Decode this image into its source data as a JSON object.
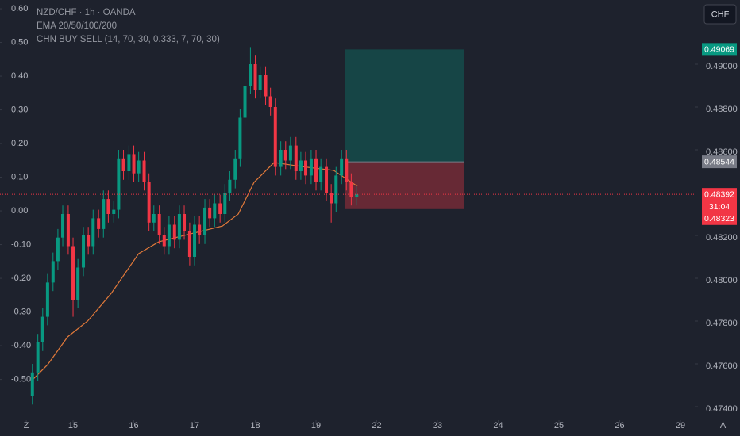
{
  "chart_data": {
    "type": "candlestick",
    "title": "NZD/CHF · 1h · OANDA",
    "subtitles": [
      "EMA 20/50/100/200",
      "CHN BUY SELL (14, 70, 30, 0.333, 7, 70, 30)"
    ],
    "currency_button": "CHF",
    "xlim": [
      -1.203,
      10.235
    ],
    "ylim": [
      0.47337,
      0.493
    ],
    "y2lim": [
      -0.621,
      0.626
    ],
    "xticks": [
      {
        "value": -0.77,
        "label": "Z"
      },
      {
        "value": 0,
        "label": "15"
      },
      {
        "value": 1,
        "label": "16"
      },
      {
        "value": 2,
        "label": "17"
      },
      {
        "value": 3,
        "label": "18"
      },
      {
        "value": 4,
        "label": "19"
      },
      {
        "value": 5,
        "label": "22"
      },
      {
        "value": 6,
        "label": "23"
      },
      {
        "value": 7,
        "label": "24"
      },
      {
        "value": 8,
        "label": "25"
      },
      {
        "value": 9,
        "label": "26"
      },
      {
        "value": 10,
        "label": "29"
      },
      {
        "value": 10.7,
        "label": "A"
      }
    ],
    "yticks": [
      {
        "value": 0.49,
        "label": "0.49000"
      },
      {
        "value": 0.488,
        "label": "0.48800"
      },
      {
        "value": 0.486,
        "label": "0.48600"
      },
      {
        "value": 0.482,
        "label": "0.48200"
      },
      {
        "value": 0.48,
        "label": "0.48000"
      },
      {
        "value": 0.478,
        "label": "0.47800"
      },
      {
        "value": 0.476,
        "label": "0.47600"
      },
      {
        "value": 0.474,
        "label": "0.47400"
      }
    ],
    "y2ticks": [
      {
        "value": 0.6,
        "label": "0.60"
      },
      {
        "value": 0.5,
        "label": "0.50"
      },
      {
        "value": 0.4,
        "label": "0.40"
      },
      {
        "value": 0.3,
        "label": "0.30"
      },
      {
        "value": 0.2,
        "label": "0.20"
      },
      {
        "value": 0.1,
        "label": "0.10"
      },
      {
        "value": 0,
        "label": "0.00"
      },
      {
        "value": -0.1,
        "label": "-0.10"
      },
      {
        "value": -0.2,
        "label": "-0.20"
      },
      {
        "value": -0.3,
        "label": "-0.30"
      },
      {
        "value": -0.4,
        "label": "-0.40"
      },
      {
        "value": -0.5,
        "label": "-0.50"
      }
    ],
    "up_color": "#089981",
    "down_color": "#f23645",
    "x": [
      -0.67,
      -0.58,
      -0.5,
      -0.42,
      -0.33,
      -0.25,
      -0.17,
      -0.08,
      0,
      0.08,
      0.17,
      0.25,
      0.33,
      0.42,
      0.5,
      0.58,
      0.67,
      0.75,
      0.83,
      0.92,
      1,
      1.08,
      1.17,
      1.25,
      1.33,
      1.42,
      1.5,
      1.58,
      1.67,
      1.75,
      1.83,
      1.92,
      2,
      2.08,
      2.17,
      2.25,
      2.33,
      2.42,
      2.5,
      2.58,
      2.67,
      2.75,
      2.83,
      2.92,
      3,
      3.08,
      3.17,
      3.25,
      3.33,
      3.42,
      3.5,
      3.58,
      3.67,
      3.75,
      3.83,
      3.92,
      4,
      4.08,
      4.17,
      4.25,
      4.33,
      4.42,
      4.5,
      4.58,
      4.67
    ],
    "open": [
      0.4745,
      0.4756,
      0.477,
      0.4782,
      0.4798,
      0.4808,
      0.4819,
      0.483,
      0.4815,
      0.479,
      0.4805,
      0.482,
      0.4815,
      0.4828,
      0.4823,
      0.4837,
      0.483,
      0.4832,
      0.4856,
      0.485,
      0.4858,
      0.4849,
      0.4855,
      0.4845,
      0.4826,
      0.483,
      0.482,
      0.4815,
      0.4825,
      0.4818,
      0.483,
      0.4822,
      0.481,
      0.4825,
      0.482,
      0.4833,
      0.4828,
      0.4835,
      0.483,
      0.484,
      0.4846,
      0.4856,
      0.4875,
      0.489,
      0.49,
      0.4888,
      0.4895,
      0.4885,
      0.488,
      0.4852,
      0.486,
      0.4855,
      0.4862,
      0.485,
      0.4855,
      0.4848,
      0.4856,
      0.4845,
      0.4852,
      0.484,
      0.4835,
      0.4848,
      0.4856,
      0.4845,
      0.4838
    ],
    "high": [
      0.476,
      0.4774,
      0.4786,
      0.4802,
      0.4812,
      0.4823,
      0.4834,
      0.4834,
      0.4819,
      0.4809,
      0.4824,
      0.4824,
      0.4832,
      0.4832,
      0.4841,
      0.4841,
      0.4836,
      0.486,
      0.486,
      0.4862,
      0.4862,
      0.4859,
      0.4859,
      0.4849,
      0.4834,
      0.4834,
      0.4824,
      0.4829,
      0.4829,
      0.4834,
      0.4834,
      0.4826,
      0.4829,
      0.4829,
      0.4837,
      0.4837,
      0.4839,
      0.4839,
      0.4844,
      0.485,
      0.486,
      0.4879,
      0.4894,
      0.4908,
      0.4904,
      0.4899,
      0.4899,
      0.4889,
      0.4884,
      0.4864,
      0.4864,
      0.4866,
      0.4866,
      0.4859,
      0.4859,
      0.486,
      0.486,
      0.4856,
      0.4856,
      0.4844,
      0.4852,
      0.486,
      0.486,
      0.4849,
      0.4843
    ],
    "low": [
      0.4741,
      0.4752,
      0.4766,
      0.4778,
      0.4794,
      0.4804,
      0.4815,
      0.4811,
      0.4782,
      0.4786,
      0.4801,
      0.4811,
      0.4811,
      0.4819,
      0.4819,
      0.4826,
      0.4826,
      0.4828,
      0.4846,
      0.4846,
      0.4845,
      0.4845,
      0.4841,
      0.4822,
      0.4822,
      0.4816,
      0.4811,
      0.4811,
      0.4814,
      0.4814,
      0.4818,
      0.4806,
      0.4806,
      0.4816,
      0.4816,
      0.4824,
      0.4824,
      0.4826,
      0.4826,
      0.4836,
      0.4842,
      0.4852,
      0.4871,
      0.4886,
      0.4884,
      0.4884,
      0.4881,
      0.4876,
      0.4848,
      0.4848,
      0.4851,
      0.4851,
      0.4846,
      0.4846,
      0.4844,
      0.4844,
      0.4841,
      0.4841,
      0.4836,
      0.4826,
      0.4831,
      0.4844,
      0.4841,
      0.4834,
      0.4834
    ],
    "close": [
      0.4756,
      0.477,
      0.4782,
      0.4798,
      0.4808,
      0.4819,
      0.483,
      0.4815,
      0.479,
      0.4805,
      0.482,
      0.4815,
      0.4828,
      0.4823,
      0.4837,
      0.483,
      0.4832,
      0.4856,
      0.485,
      0.4858,
      0.4849,
      0.4855,
      0.4845,
      0.4826,
      0.483,
      0.482,
      0.4815,
      0.4825,
      0.4818,
      0.483,
      0.4822,
      0.481,
      0.4825,
      0.482,
      0.4833,
      0.4828,
      0.4835,
      0.483,
      0.484,
      0.4846,
      0.4856,
      0.4875,
      0.489,
      0.49,
      0.4888,
      0.4895,
      0.4885,
      0.488,
      0.4852,
      0.486,
      0.4855,
      0.4862,
      0.485,
      0.4855,
      0.4848,
      0.4856,
      0.4845,
      0.4852,
      0.484,
      0.4835,
      0.4848,
      0.4856,
      0.4845,
      0.4838,
      0.48392
    ],
    "ema": {
      "color": "#e0793a",
      "x": [
        -0.68,
        -0.42,
        -0.09,
        0.24,
        0.63,
        1.08,
        1.41,
        1.93,
        2.46,
        2.72,
        2.98,
        3.31,
        3.76,
        4.29,
        4.68
      ],
      "values": [
        0.47522,
        0.47596,
        0.47726,
        0.478,
        0.4793,
        0.48115,
        0.4817,
        0.48207,
        0.48244,
        0.483,
        0.48448,
        0.48541,
        0.48522,
        0.48504,
        0.4843
      ]
    },
    "position": {
      "x_start": 4.47,
      "x_end": 6.44,
      "target": 0.49069,
      "entry": 0.48544,
      "stop": 0.48323,
      "target_color": "#089981",
      "entry_color": "#787b86",
      "stop_color": "#f23645"
    },
    "last_price": 0.48392,
    "countdown": "31:04",
    "price_line_color": "#f23645"
  }
}
